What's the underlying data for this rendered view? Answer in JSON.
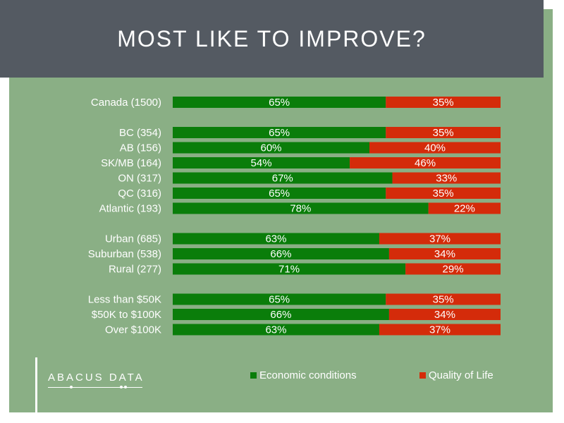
{
  "slide": {
    "title": "MOST LIKE TO IMPROVE?",
    "logo_text": "ABACUS DATA"
  },
  "chart_data": {
    "type": "bar",
    "orientation": "horizontal",
    "stacked": true,
    "title": "MOST LIKE TO IMPROVE?",
    "categories": [
      "Canada (1500)",
      "BC (354)",
      "AB (156)",
      "SK/MB (164)",
      "ON (317)",
      "QC (316)",
      "Atlantic (193)",
      "Urban (685)",
      "Suburban (538)",
      "Rural (277)",
      "Less than $50K",
      "$50K to $100K",
      "Over $100K"
    ],
    "groups": [
      [
        0
      ],
      [
        1,
        2,
        3,
        4,
        5,
        6
      ],
      [
        7,
        8,
        9
      ],
      [
        10,
        11,
        12
      ]
    ],
    "series": [
      {
        "name": "Economic conditions",
        "color": "#0a7d0a",
        "values": [
          65,
          65,
          60,
          54,
          67,
          65,
          78,
          63,
          66,
          71,
          65,
          66,
          63
        ]
      },
      {
        "name": "Quality of Life",
        "color": "#d42b0a",
        "values": [
          35,
          35,
          40,
          46,
          33,
          35,
          22,
          37,
          34,
          29,
          35,
          34,
          37
        ]
      }
    ],
    "value_suffix": "%",
    "xlim": [
      0,
      100
    ],
    "legend_position": "bottom"
  }
}
